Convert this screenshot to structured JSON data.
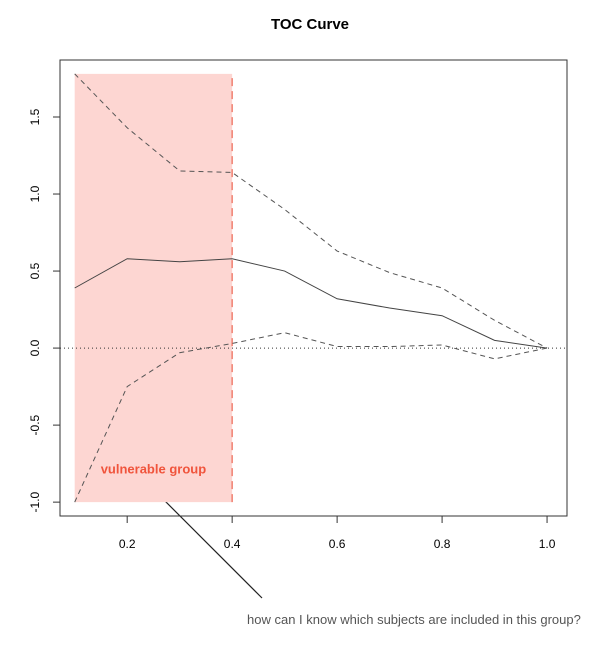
{
  "chart_data": {
    "type": "line",
    "title": "TOC Curve",
    "x": [
      0.1,
      0.2,
      0.3,
      0.4,
      0.5,
      0.6,
      0.7,
      0.8,
      0.9,
      1.0
    ],
    "series": [
      {
        "color": "#444444",
        "style": "solid",
        "values": [
          0.39,
          0.58,
          0.56,
          0.58,
          0.5,
          0.32,
          0.26,
          0.21,
          0.05,
          0.0
        ]
      },
      {
        "color": "#555555",
        "style": "dashed",
        "values": [
          1.78,
          1.43,
          1.15,
          1.14,
          0.9,
          0.63,
          0.49,
          0.39,
          0.18,
          0.0
        ]
      },
      {
        "color": "#555555",
        "style": "dashed",
        "values": [
          -1.0,
          -0.25,
          -0.03,
          0.03,
          0.1,
          0.01,
          0.01,
          0.02,
          -0.07,
          0.0
        ]
      }
    ],
    "xlim": [
      0.072,
      1.038
    ],
    "ylim": [
      -1.09,
      1.87
    ],
    "xticks": [
      0.2,
      0.4,
      0.6,
      0.8,
      {
        "value": 1,
        "label": "1.0"
      }
    ],
    "yticks": [
      {
        "value": -1,
        "label": "-1.0"
      },
      -0.5,
      {
        "value": 0,
        "label": "0.0"
      },
      0.5,
      {
        "value": 1,
        "label": "1.0"
      },
      1.5
    ],
    "reference_line": 0,
    "highlight": {
      "xlim": [
        0.1,
        0.4
      ],
      "ylim": [
        -1.0,
        1.78
      ],
      "color": "#fdd6d2",
      "edge_color": "#f08070",
      "label": "vulnerable group",
      "label_color": "#f0543c"
    },
    "note": "how can I know which subjects are included in this group?"
  }
}
